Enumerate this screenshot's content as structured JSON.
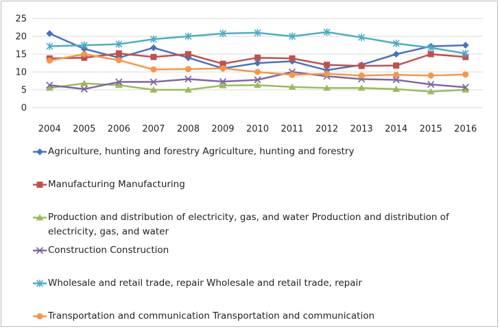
{
  "chart_data": {
    "type": "line",
    "x": [
      "2004",
      "2005",
      "2006",
      "2007",
      "2008",
      "2009",
      "2010",
      "2011",
      "2012",
      "2013",
      "2014",
      "2015",
      "2016"
    ],
    "ylim": [
      0,
      25
    ],
    "yticks": [
      0,
      5,
      10,
      15,
      20,
      25
    ],
    "grid": true,
    "legend_position": "bottom",
    "series": [
      {
        "name": "Agriculture, hunting and forestry Agriculture, hunting and forestry",
        "color": "#4472C4",
        "marker": "diamond",
        "values": [
          20.8,
          16.5,
          14.0,
          16.8,
          14.0,
          11.0,
          12.5,
          13.0,
          10.5,
          12.0,
          15.0,
          17.2,
          17.5
        ]
      },
      {
        "name": "Manufacturing Manufacturing",
        "color": "#C0504D",
        "marker": "square",
        "values": [
          13.8,
          14.0,
          15.2,
          14.2,
          15.0,
          12.3,
          14.0,
          13.8,
          12.0,
          11.7,
          11.8,
          15.0,
          14.2
        ]
      },
      {
        "name": "Production and distribution of electricity, gas, and water Production and distribution of electricity, gas, and water",
        "color": "#9BBB59",
        "marker": "triangle",
        "values": [
          5.5,
          6.8,
          6.3,
          5.0,
          5.0,
          6.2,
          6.3,
          5.8,
          5.5,
          5.5,
          5.2,
          4.5,
          5.0
        ]
      },
      {
        "name": "Construction Construction",
        "color": "#8064A2",
        "marker": "x",
        "values": [
          6.3,
          5.2,
          7.2,
          7.2,
          8.0,
          7.3,
          7.8,
          10.0,
          8.8,
          8.0,
          7.8,
          6.5,
          5.7
        ]
      },
      {
        "name": "Wholesale and retail trade, repair Wholesale and retail trade, repair",
        "color": "#4BACC6",
        "marker": "star",
        "values": [
          17.2,
          17.5,
          17.8,
          19.2,
          20.0,
          20.8,
          21.0,
          20.0,
          21.2,
          19.7,
          18.0,
          16.8,
          15.2
        ]
      },
      {
        "name": "Transportation and communication Transportation and communication",
        "color": "#F79646",
        "marker": "circle",
        "values": [
          13.2,
          15.0,
          13.3,
          10.7,
          10.8,
          11.0,
          10.0,
          9.2,
          9.5,
          9.0,
          9.2,
          9.0,
          9.3
        ]
      }
    ]
  }
}
